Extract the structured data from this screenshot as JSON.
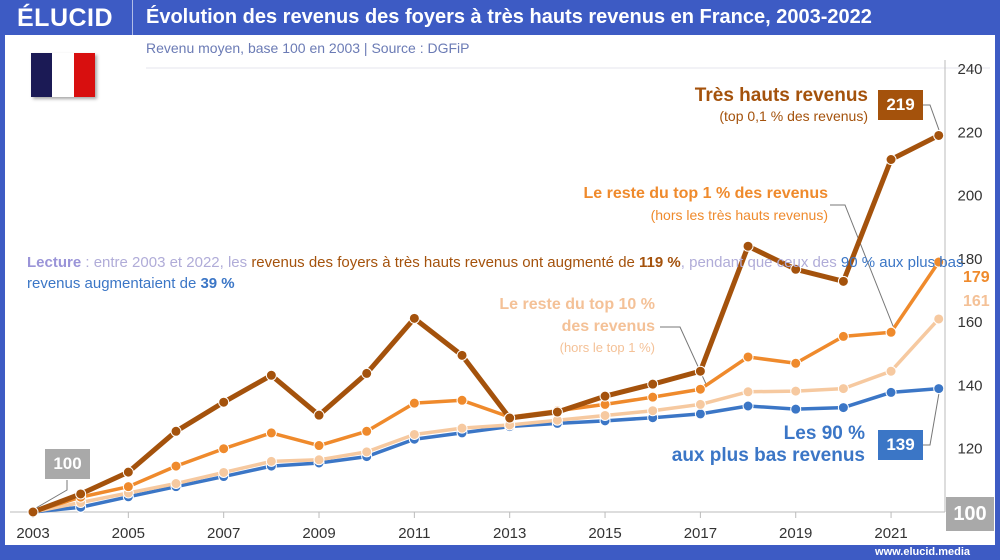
{
  "header": {
    "logo": "ÉLUCID",
    "title": "Évolution des revenus des foyers à très hauts revenus en France, 2003-2022",
    "subtitle": "Revenu moyen, base 100 en 2003  |  Source : DGFiP",
    "url": "www.elucid.media"
  },
  "flag": {
    "country": "France",
    "colors": [
      "#1b1a55",
      "#ffffff",
      "#d80f0f"
    ]
  },
  "lecture": {
    "label": "Lecture",
    "p1": " : entre 2003 et 2022, les ",
    "p2": "revenus des foyers à très hauts revenus ont augmenté de ",
    "p3": "119 %",
    "p4": ", pendant que ceux des ",
    "p5": "90 % aux plus bas revenus augmentaient de ",
    "p6": "39 %"
  },
  "annotations": {
    "top01_title": "Très hauts revenus",
    "top01_sub": "(top 0,1 % des revenus)",
    "top01_end": "219",
    "top1_title": "Le reste du top 1 % des revenus",
    "top1_sub": "(hors les très hauts revenus)",
    "top1_end": "179",
    "top10_title1": "Le reste du top 10 %",
    "top10_title2": "des revenus",
    "top10_sub": "(hors le top 1 %)",
    "top10_end": "161",
    "p90_title1": "Les 90 %",
    "p90_title2": "aux plus bas revenus",
    "p90_end": "139",
    "base_start": "100",
    "base_axis": "100"
  },
  "chart_data": {
    "type": "line",
    "title": "Évolution des revenus des foyers à très hauts revenus en France, 2003-2022",
    "ylabel": "Revenu moyen, base 100 en 2003",
    "ylim": [
      100,
      240
    ],
    "yticks": [
      120,
      140,
      160,
      180,
      200,
      220,
      240
    ],
    "xticks": [
      2003,
      2005,
      2007,
      2009,
      2011,
      2013,
      2015,
      2017,
      2019,
      2021
    ],
    "grid": false,
    "x": [
      2003,
      2004,
      2005,
      2006,
      2007,
      2008,
      2009,
      2010,
      2011,
      2012,
      2013,
      2014,
      2015,
      2016,
      2017,
      2018,
      2019,
      2020,
      2021,
      2022
    ],
    "series": [
      {
        "name": "Les 90 % aux plus bas revenus",
        "color": "#3b76c6",
        "values": [
          100,
          101.5,
          104.8,
          108,
          111.2,
          114.5,
          115.5,
          117.5,
          123,
          125,
          127,
          128,
          128.8,
          129.8,
          131,
          133.5,
          132.5,
          133,
          137.8,
          139
        ]
      },
      {
        "name": "Le reste du top 10 % des revenus",
        "color": "#f6c9a0",
        "values": [
          100,
          103,
          106,
          109,
          112.5,
          116,
          116.5,
          119,
          124.5,
          126.5,
          127.5,
          129,
          130.5,
          132,
          134,
          138,
          138.2,
          139,
          144.5,
          161
        ]
      },
      {
        "name": "Le reste du top 1 % des revenus",
        "color": "#ef8a2c",
        "values": [
          100,
          104.7,
          108,
          114.5,
          120,
          125,
          121,
          125.5,
          134.4,
          135.3,
          130,
          132,
          134,
          136.3,
          138.8,
          149,
          147,
          155.5,
          156.8,
          179
        ]
      },
      {
        "name": "Très hauts revenus",
        "color": "#a4520c",
        "values": [
          100,
          105.7,
          112.6,
          125.5,
          134.7,
          143.2,
          130.6,
          143.8,
          161.2,
          149.5,
          129.7,
          131.6,
          136.6,
          140.4,
          144.5,
          184,
          176.7,
          172.9,
          211.4,
          219
        ]
      }
    ]
  }
}
